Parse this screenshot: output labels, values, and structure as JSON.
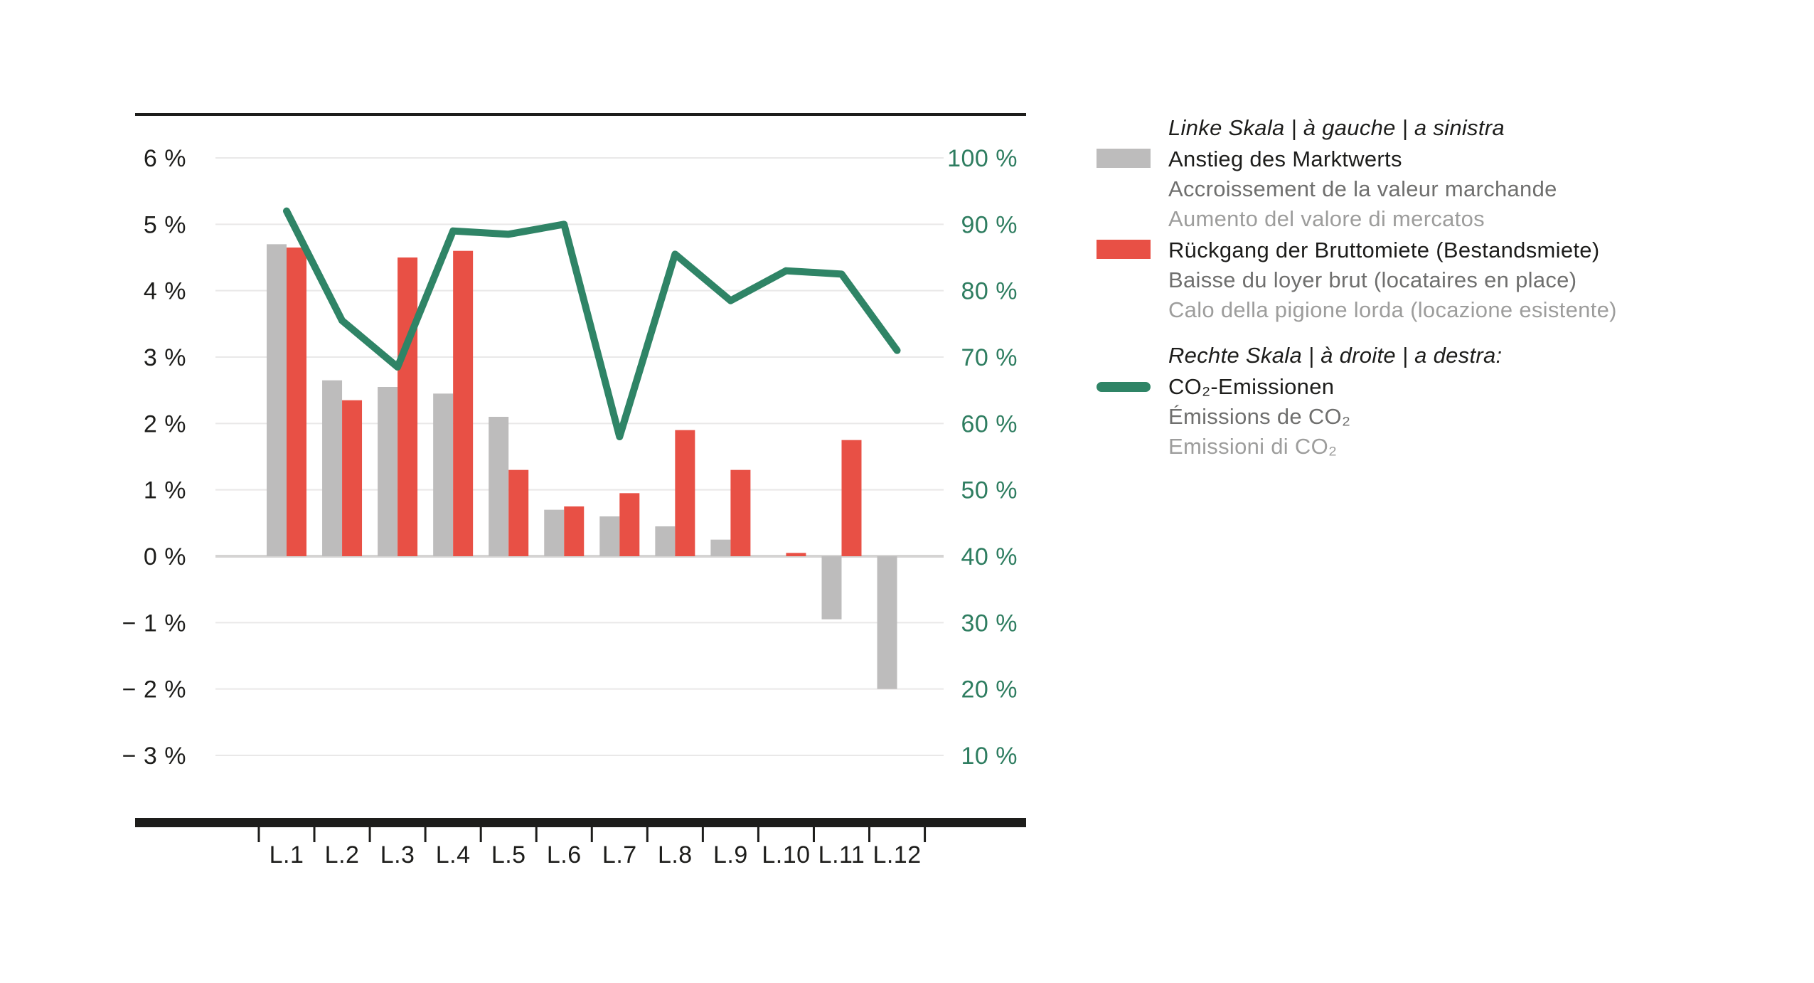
{
  "chart_data": {
    "type": "combo-bar-line",
    "title": "",
    "xlabel": "",
    "ylabel_left": "%",
    "ylabel_right": "%",
    "grid": true,
    "legend_position": "right",
    "categories": [
      "L.1",
      "L.2",
      "L.3",
      "L.4",
      "L.5",
      "L.6",
      "L.7",
      "L.8",
      "L.9",
      "L.10",
      "L.11",
      "L.12"
    ],
    "series": [
      {
        "key": "marktwert",
        "name": "Anstieg des Marktwerts",
        "type": "bar",
        "axis": "left",
        "color": "#bdbcbc",
        "values": [
          4.7,
          2.65,
          2.55,
          2.45,
          2.1,
          0.7,
          0.6,
          0.45,
          0.25,
          0,
          -0.95,
          -2.0
        ]
      },
      {
        "key": "bruttomiete",
        "name": "Rückgang der Bruttomiete (Bestandsmiete)",
        "type": "bar",
        "axis": "left",
        "color": "#e85045",
        "values": [
          4.65,
          2.35,
          4.5,
          4.6,
          1.3,
          0.75,
          0.95,
          1.9,
          1.3,
          0.05,
          1.75,
          0
        ]
      },
      {
        "key": "co2",
        "name": "CO₂-Emissionen",
        "type": "line",
        "axis": "right",
        "color": "#2f8466",
        "values": [
          92,
          75.5,
          68.5,
          89,
          88.5,
          90,
          58,
          85.5,
          78.5,
          83,
          82.5,
          71
        ]
      }
    ],
    "left_axis": {
      "min": -3,
      "max": 6,
      "step": 1,
      "ticks": [
        "6 %",
        "5 %",
        "4 %",
        "3 %",
        "2 %",
        "1 %",
        "0 %",
        "− 1 %",
        "− 2 %",
        "− 3 %"
      ]
    },
    "right_axis": {
      "min": 10,
      "max": 100,
      "step": 10,
      "ticks": [
        "100 %",
        "90 %",
        "80 %",
        "70 %",
        "60 %",
        "50 %",
        "40 %",
        "30 %",
        "20 %",
        "10 %"
      ]
    }
  },
  "colors": {
    "text_black": "#1d1d1b",
    "text_french_gray": "#6f6f6e",
    "text_italian_gray": "#9d9d9c",
    "right_axis_green": "#2e7d60",
    "gridline": "#e9e8e8",
    "zero_line": "#d5d4d3",
    "axis_black": "#1d1d1b",
    "bar_gray": "#bdbcbc",
    "bar_red": "#e85045",
    "line_green": "#2f8466"
  },
  "legend": {
    "left_scale": {
      "header": "Linke Skala | à gauche | a sinistra",
      "items": [
        {
          "swatch": "gray-bar",
          "label_de": "Anstieg des Marktwerts",
          "label_fr": "Accroissement de la valeur marchande",
          "label_it": "Aumento del valore di mercatos"
        },
        {
          "swatch": "red-bar",
          "label_de": "Rückgang der Bruttomiete (Bestandsmiete)",
          "label_fr": "Baisse du loyer brut (locataires en place)",
          "label_it": "Calo della pigione lorda (locazione esistente)"
        }
      ]
    },
    "right_scale": {
      "header": "Rechte Skala | à droite | a destra:",
      "items": [
        {
          "swatch": "green-line",
          "label_de": "CO₂-Emissionen",
          "label_fr": "Émissions de CO₂",
          "label_it": "Emissioni di CO₂"
        }
      ]
    }
  }
}
